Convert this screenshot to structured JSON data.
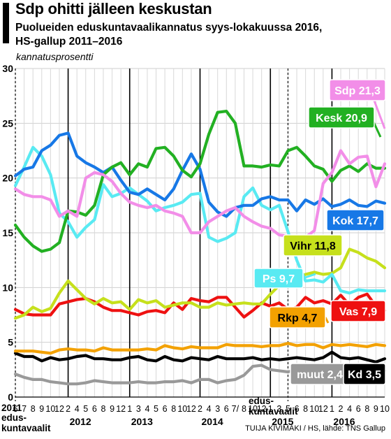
{
  "header": {
    "title": "Sdp ohitti jälleen keskustan",
    "subtitle_line1": "Puolueiden eduskuntavaalikannatus syys-lokakuussa 2016,",
    "subtitle_line2": "HS-gallup 2011–2016",
    "unit": "kannatusprosentti"
  },
  "footer": {
    "year_2011": "2011",
    "election_2011_line1": "edus-",
    "election_2011_line2": "kuntavaalit",
    "election_2015_line1": "edus-",
    "election_2015_line2": "kuntavaalit",
    "credit": "TUIJA KIVIMÄKI / HS, lähde: TNS Gallup"
  },
  "colors": {
    "Sdp": "#f28ee8",
    "Kesk": "#22b022",
    "Kok": "#1778e6",
    "Ps": "#59eaf2",
    "Vihr": "#c6e01c",
    "Vas": "#ee1111",
    "Rkp": "#f3a100",
    "Kd": "#000000",
    "muut": "#999999"
  },
  "chart_data": {
    "type": "line",
    "title": "Sdp ohitti jälleen keskustan",
    "ylabel": "kannatusprosentti",
    "ylim": [
      0,
      30
    ],
    "yticks": [
      "0",
      "5",
      "10",
      "15",
      "20",
      "25",
      "30"
    ],
    "x_tick_labels": [
      {
        "i": 0,
        "t": "6"
      },
      {
        "i": 1,
        "t": "7"
      },
      {
        "i": 2,
        "t": "8"
      },
      {
        "i": 3,
        "t": "9"
      },
      {
        "i": 4,
        "t": "10"
      },
      {
        "i": 5,
        "t": "12"
      },
      {
        "i": 6,
        "t": "2"
      },
      {
        "i": 7,
        "t": "4"
      },
      {
        "i": 8,
        "t": "5"
      },
      {
        "i": 9,
        "t": "6"
      },
      {
        "i": 10,
        "t": "8"
      },
      {
        "i": 11,
        "t": "9"
      },
      {
        "i": 12,
        "t": "12"
      },
      {
        "i": 13,
        "t": "1"
      },
      {
        "i": 14,
        "t": "3"
      },
      {
        "i": 15,
        "t": "4"
      },
      {
        "i": 16,
        "t": "5"
      },
      {
        "i": 17,
        "t": "6"
      },
      {
        "i": 18,
        "t": "8"
      },
      {
        "i": 19,
        "t": "10"
      },
      {
        "i": 20,
        "t": "12"
      },
      {
        "i": 21,
        "t": "2"
      },
      {
        "i": 22,
        "t": "4"
      },
      {
        "i": 23,
        "t": "3"
      },
      {
        "i": 24,
        "t": "6"
      },
      {
        "i": 25,
        "t": "7/"
      },
      {
        "i": 26,
        "t": "8"
      },
      {
        "i": 27,
        "t": "10"
      },
      {
        "i": 28,
        "t": "12"
      },
      {
        "i": 29,
        "t": "1"
      },
      {
        "i": 30,
        "t": "3"
      },
      {
        "i": 31,
        "t": "5"
      },
      {
        "i": 32,
        "t": "6"
      },
      {
        "i": 33,
        "t": "8"
      },
      {
        "i": 34,
        "t": "10"
      },
      {
        "i": 35,
        "t": "12"
      },
      {
        "i": 36,
        "t": "1"
      },
      {
        "i": 37,
        "t": "2"
      },
      {
        "i": 38,
        "t": "4"
      },
      {
        "i": 39,
        "t": "6"
      },
      {
        "i": 40,
        "t": "8"
      },
      {
        "i": 41,
        "t": "9"
      },
      {
        "i": 42,
        "t": "10"
      }
    ],
    "year_labels": [
      {
        "at": 6,
        "t": "2012"
      },
      {
        "at": 13,
        "t": "2013"
      },
      {
        "at": 21,
        "t": "2014"
      },
      {
        "at": 29,
        "t": "2015"
      },
      {
        "at": 36,
        "t": "2016"
      }
    ],
    "election_markers": [
      0,
      31
    ],
    "series": [
      {
        "name": "Sdp",
        "end_label": "Sdp 21,3",
        "values": [
          19.0,
          18.5,
          18.3,
          18.3,
          18.0,
          16.5,
          17.0,
          16.5,
          20.0,
          20.5,
          20.3,
          19.7,
          18.6,
          17.8,
          17.5,
          17.3,
          17.5,
          17.0,
          16.8,
          16.5,
          15.0,
          15.0,
          16.0,
          16.5,
          17.0,
          17.3,
          16.5,
          16.0,
          15.6,
          15.4,
          14.8,
          14.7,
          14.5,
          14.6,
          15.2,
          19.5,
          20.5,
          22.5,
          21.3,
          21.9,
          22.0,
          19.2,
          21.3
        ]
      },
      {
        "name": "Kesk",
        "end_label": "Kesk 20,9",
        "values": [
          15.7,
          14.6,
          13.8,
          13.3,
          13.5,
          14.1,
          17.0,
          16.9,
          16.6,
          17.5,
          20.3,
          21.0,
          21.4,
          20.3,
          21.3,
          21.0,
          22.7,
          22.8,
          22.0,
          20.7,
          20.1,
          21.3,
          24.0,
          26.0,
          26.1,
          25.0,
          21.1,
          21.1,
          21.0,
          21.2,
          21.1,
          22.5,
          22.8,
          22.0,
          21.1,
          20.8,
          19.7,
          20.7,
          21.1,
          20.6,
          21.3,
          20.9,
          20.9
        ]
      },
      {
        "name": "Kok",
        "end_label": "Kok 17,7",
        "values": [
          20.2,
          20.8,
          21.0,
          22.5,
          23.0,
          23.9,
          24.1,
          22.0,
          21.4,
          21.0,
          20.5,
          21.0,
          19.8,
          18.7,
          18.5,
          19.0,
          18.5,
          18.0,
          19.0,
          20.7,
          22.2,
          20.8,
          17.8,
          16.9,
          16.5,
          17.3,
          17.5,
          17.5,
          18.1,
          18.3,
          18.0,
          18.0,
          17.0,
          18.0,
          17.6,
          18.1,
          17.4,
          17.6,
          18.0,
          17.5,
          17.4,
          17.9,
          17.7
        ]
      },
      {
        "name": "Ps",
        "end_label": "Ps 9,7",
        "values": [
          19.3,
          21.0,
          22.8,
          22.0,
          20.3,
          16.8,
          16.0,
          14.6,
          15.5,
          16.2,
          19.4,
          18.3,
          18.6,
          19.1,
          18.5,
          17.9,
          17.0,
          17.3,
          17.5,
          17.8,
          18.5,
          18.6,
          14.6,
          14.2,
          14.5,
          15.0,
          18.3,
          19.1,
          17.5,
          17.1,
          17.5,
          15.1,
          12.5,
          10.6,
          10.7,
          10.5,
          11.2,
          9.7,
          9.5,
          9.8,
          9.7,
          9.7,
          9.7
        ]
      },
      {
        "name": "Vihr",
        "end_label": "Vihr 11,8",
        "values": [
          7.2,
          7.5,
          8.2,
          7.8,
          8.1,
          9.5,
          10.6,
          9.8,
          9.0,
          8.5,
          9.0,
          8.6,
          8.7,
          8.0,
          8.9,
          8.6,
          8.8,
          8.2,
          8.4,
          8.6,
          8.6,
          8.2,
          8.2,
          8.6,
          8.4,
          8.5,
          8.6,
          8.5,
          8.5,
          9.4,
          10.2,
          10.2,
          10.8,
          11.2,
          11.4,
          11.2,
          11.3,
          11.8,
          13.5,
          13.2,
          12.7,
          12.4,
          11.8
        ]
      },
      {
        "name": "Vas",
        "end_label": "Vas 7,9",
        "values": [
          8.0,
          7.6,
          7.5,
          7.5,
          7.5,
          8.5,
          8.7,
          8.9,
          9.0,
          8.7,
          8.2,
          7.9,
          7.9,
          7.7,
          7.5,
          7.8,
          7.9,
          7.7,
          8.6,
          8.0,
          9.0,
          8.8,
          8.7,
          9.1,
          9.1,
          8.2,
          7.3,
          7.9,
          8.6,
          8.3,
          8.6,
          8.0,
          8.2,
          9.1,
          8.6,
          8.8,
          8.5,
          9.3,
          8.4,
          9.1,
          9.4,
          8.3,
          7.9
        ]
      },
      {
        "name": "Rkp",
        "end_label": "Rkp 4,7",
        "values": [
          4.2,
          4.2,
          4.2,
          4.1,
          4.0,
          4.3,
          4.4,
          4.3,
          4.3,
          4.2,
          4.5,
          4.3,
          4.3,
          4.3,
          4.3,
          4.4,
          4.3,
          4.7,
          4.5,
          4.4,
          4.6,
          4.5,
          4.5,
          4.5,
          4.8,
          4.7,
          4.7,
          4.7,
          4.6,
          4.7,
          4.7,
          4.9,
          4.7,
          4.8,
          4.8,
          4.5,
          4.8,
          4.7,
          4.8,
          4.7,
          4.6,
          4.8,
          4.7
        ]
      },
      {
        "name": "Kd",
        "end_label": "Kd 3,5",
        "values": [
          4.0,
          3.7,
          3.7,
          3.3,
          3.6,
          3.4,
          3.5,
          3.7,
          3.8,
          3.5,
          3.5,
          3.4,
          3.4,
          3.6,
          3.7,
          3.4,
          3.3,
          3.7,
          3.4,
          3.3,
          3.6,
          3.5,
          3.4,
          3.7,
          3.5,
          3.5,
          3.5,
          3.6,
          3.4,
          3.5,
          3.4,
          3.5,
          3.6,
          3.5,
          3.4,
          3.6,
          4.1,
          3.6,
          3.5,
          3.6,
          3.4,
          3.2,
          3.5
        ]
      },
      {
        "name": "muut",
        "end_label": "muut 2,4",
        "values": [
          2.1,
          1.8,
          1.6,
          1.6,
          1.4,
          1.3,
          1.2,
          1.2,
          1.3,
          1.5,
          1.4,
          1.3,
          1.3,
          1.3,
          1.4,
          1.3,
          1.3,
          1.4,
          1.4,
          1.5,
          1.3,
          1.6,
          1.6,
          1.3,
          1.5,
          1.6,
          2.0,
          2.8,
          2.9,
          2.5,
          2.4,
          2.3,
          2.5,
          2.3,
          2.2,
          2.3,
          2.1,
          2.2,
          2.2,
          2.3,
          2.3,
          2.2,
          2.4
        ]
      }
    ]
  }
}
